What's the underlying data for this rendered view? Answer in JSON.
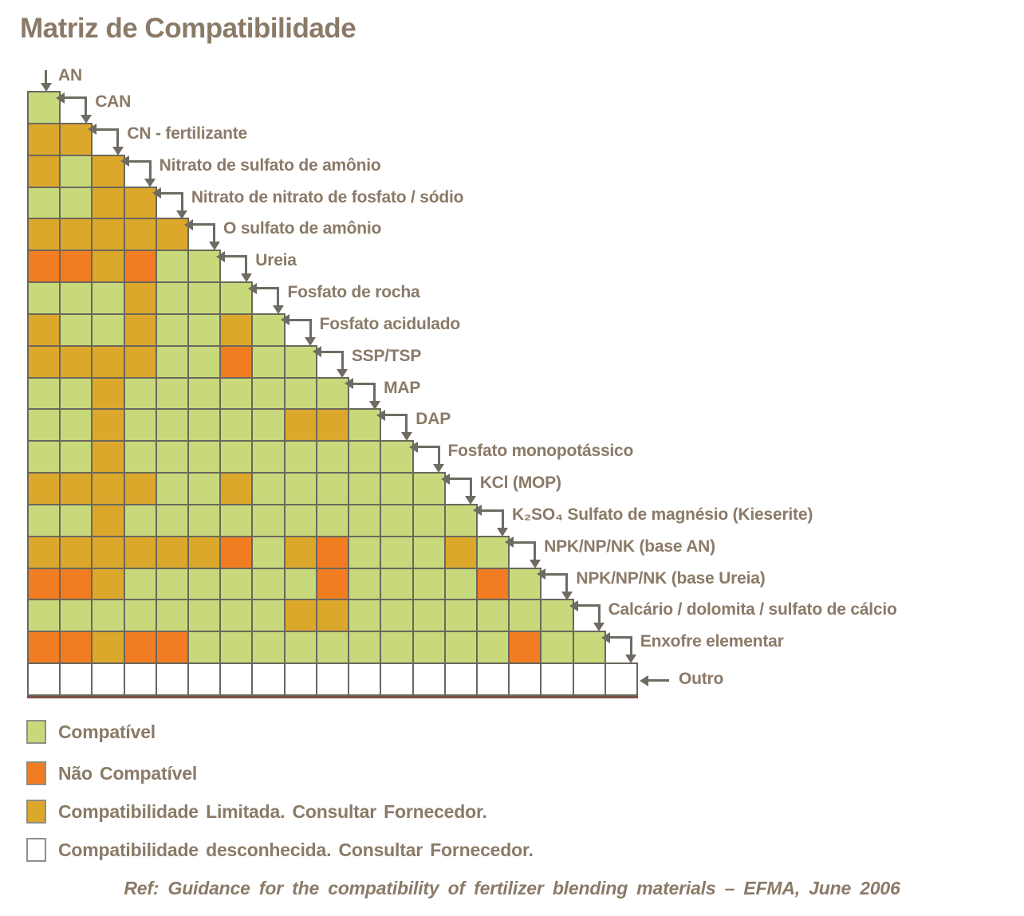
{
  "title": "Matriz de Compatibilidade",
  "footer": "Ref: Guidance  for the compatibility  of fertilizer blending  materials – EFMA, June 2006",
  "colors": {
    "compatible": "#C8D97C",
    "not_compatible": "#F07D22",
    "limited": "#DBA82B",
    "unknown": "#FFFFFF",
    "grid": "#6B675C",
    "text": "#8A7A67",
    "arrow": "#6F6B62"
  },
  "legend": {
    "items": [
      {
        "code": "C",
        "label": "Compatível"
      },
      {
        "code": "N",
        "label": "Não Compatível"
      },
      {
        "code": "L",
        "label": "Compatibilidade Limitada. Consultar Fornecedor."
      },
      {
        "code": "U",
        "label": "Compatibilidade desconhecida. Consultar Fornecedor."
      }
    ]
  },
  "chart_data": {
    "type": "heatmap",
    "title": "Matriz de Compatibilidade",
    "layout": "lower-triangular staircase; row i (from 2nd material) holds compatibility with materials 1..i-1",
    "legend_position": "bottom-left",
    "value_meaning": {
      "C": "Compatível",
      "N": "Não Compatível",
      "L": "Compatibilidade Limitada. Consultar Fornecedor.",
      "U": "Compatibilidade desconhecida. Consultar Fornecedor."
    },
    "materials": [
      "AN",
      "CAN",
      "CN - fertilizante",
      "Nitrato de sulfato de amônio",
      "Nitrato de nitrato de fosfato / sódio",
      "O sulfato de amônio",
      "Ureia",
      "Fosfato de rocha",
      "Fosfato acidulado",
      "SSP/TSP",
      "MAP",
      "DAP",
      "Fosfato monopotássico",
      "KCl (MOP)",
      "K₂SO₄ Sulfato de magnésio (Kieserite)",
      "NPK/NP/NK (base AN)",
      "NPK/NP/NK (base Ureia)",
      "Calcário / dolomita / sulfato de cálcio",
      "Enxofre elementar",
      "Outro"
    ],
    "values": [
      [
        "C"
      ],
      [
        "L",
        "L"
      ],
      [
        "L",
        "C",
        "L"
      ],
      [
        "C",
        "C",
        "L",
        "L"
      ],
      [
        "L",
        "L",
        "L",
        "L",
        "L"
      ],
      [
        "N",
        "N",
        "L",
        "N",
        "C",
        "C"
      ],
      [
        "C",
        "C",
        "C",
        "L",
        "C",
        "C",
        "C"
      ],
      [
        "L",
        "C",
        "C",
        "L",
        "C",
        "C",
        "L",
        "C"
      ],
      [
        "L",
        "L",
        "L",
        "L",
        "C",
        "C",
        "N",
        "C",
        "C"
      ],
      [
        "C",
        "C",
        "L",
        "C",
        "C",
        "C",
        "C",
        "C",
        "C",
        "C"
      ],
      [
        "C",
        "C",
        "L",
        "C",
        "C",
        "C",
        "C",
        "C",
        "L",
        "L",
        "C"
      ],
      [
        "C",
        "C",
        "L",
        "C",
        "C",
        "C",
        "C",
        "C",
        "C",
        "C",
        "C",
        "C"
      ],
      [
        "L",
        "L",
        "L",
        "L",
        "C",
        "C",
        "L",
        "C",
        "C",
        "C",
        "C",
        "C",
        "C"
      ],
      [
        "C",
        "C",
        "L",
        "C",
        "C",
        "C",
        "C",
        "C",
        "C",
        "C",
        "C",
        "C",
        "C",
        "C"
      ],
      [
        "L",
        "L",
        "L",
        "L",
        "L",
        "L",
        "N",
        "C",
        "L",
        "N",
        "C",
        "C",
        "C",
        "L",
        "C"
      ],
      [
        "N",
        "N",
        "L",
        "C",
        "C",
        "C",
        "C",
        "C",
        "C",
        "N",
        "C",
        "C",
        "C",
        "C",
        "N",
        "C"
      ],
      [
        "C",
        "C",
        "C",
        "C",
        "C",
        "C",
        "C",
        "C",
        "L",
        "L",
        "C",
        "C",
        "C",
        "C",
        "C",
        "C",
        "C"
      ],
      [
        "N",
        "N",
        "L",
        "N",
        "N",
        "C",
        "C",
        "C",
        "C",
        "C",
        "C",
        "C",
        "C",
        "C",
        "C",
        "N",
        "C",
        "C"
      ],
      [
        "U",
        "U",
        "U",
        "U",
        "U",
        "U",
        "U",
        "U",
        "U",
        "U",
        "U",
        "U",
        "U",
        "U",
        "U",
        "U",
        "U",
        "U",
        "U"
      ]
    ]
  }
}
